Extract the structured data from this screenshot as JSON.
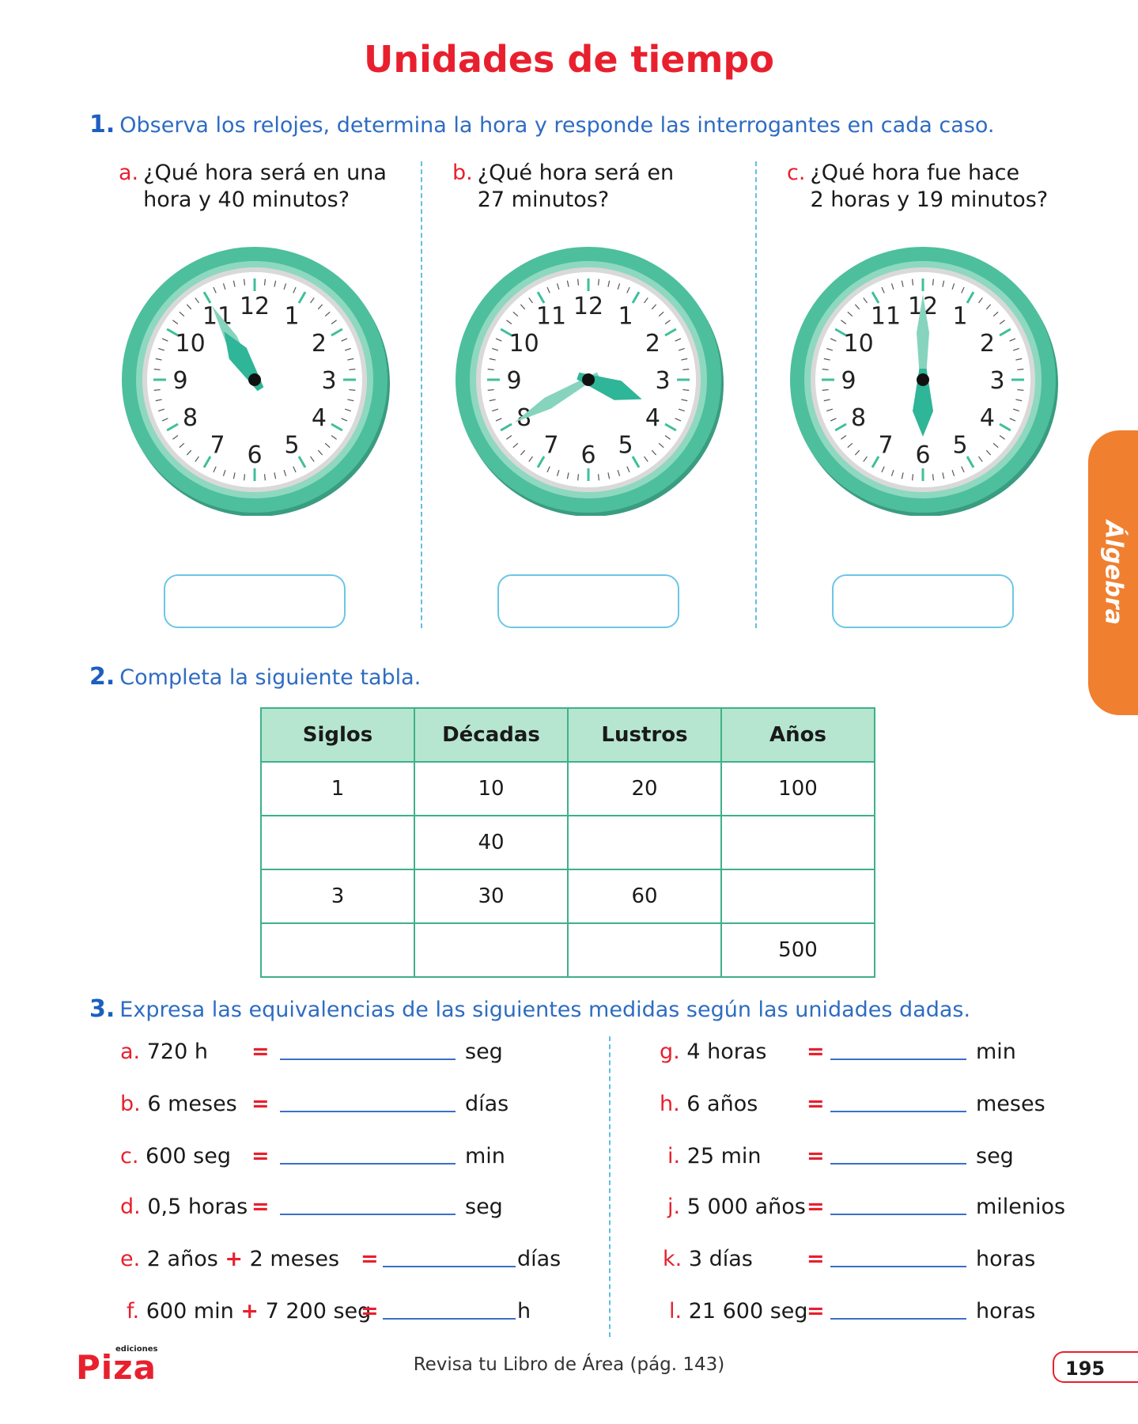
{
  "title": "Unidades de tiempo",
  "section1": {
    "number": "1.",
    "instruction": "Observa los relojes, determina la hora y responde las interrogantes en cada caso.",
    "questions": [
      {
        "letter": "a.",
        "line1": "¿Qué hora será en una",
        "line2": "hora y 40 minutos?",
        "clock_hour": 10,
        "clock_minute": 55
      },
      {
        "letter": "b.",
        "line1": "¿Qué hora será en",
        "line2": "27 minutos?",
        "clock_hour": 3,
        "clock_minute": 40
      },
      {
        "letter": "c.",
        "line1": "¿Qué hora fue hace",
        "line2": "2 horas y 19 minutos?",
        "clock_hour": 6,
        "clock_minute": 0
      }
    ],
    "clock_numerals": [
      "12",
      "1",
      "2",
      "3",
      "4",
      "5",
      "6",
      "7",
      "8",
      "9",
      "10",
      "11"
    ]
  },
  "section2": {
    "number": "2.",
    "instruction": "Completa la siguiente tabla.",
    "headers": [
      "Siglos",
      "Décadas",
      "Lustros",
      "Años"
    ],
    "rows": [
      [
        "1",
        "10",
        "20",
        "100"
      ],
      [
        "",
        "40",
        "",
        ""
      ],
      [
        "3",
        "30",
        "60",
        ""
      ],
      [
        "",
        "",
        "",
        "500"
      ]
    ]
  },
  "section3": {
    "number": "3.",
    "instruction": "Expresa las equivalencias de las siguientes medidas según las unidades dadas.",
    "left": [
      {
        "letter": "a.",
        "text": "720 h",
        "unit": "seg"
      },
      {
        "letter": "b.",
        "text": "6 meses",
        "unit": "días"
      },
      {
        "letter": "c.",
        "text": "600 seg",
        "unit": "min"
      },
      {
        "letter": "d.",
        "text": "0,5 horas",
        "unit": "seg"
      },
      {
        "letter": "e.",
        "text": "2 años",
        "plus": "+",
        "text2": "2 meses",
        "unit": "días"
      },
      {
        "letter": "f.",
        "text": "600 min",
        "plus": "+",
        "text2": "7 200 seg",
        "unit": "h"
      }
    ],
    "right": [
      {
        "letter": "g.",
        "text": "4 horas",
        "unit": "min"
      },
      {
        "letter": "h.",
        "text": "6 años",
        "unit": "meses"
      },
      {
        "letter": "i.",
        "text": "25 min",
        "unit": "seg"
      },
      {
        "letter": "j.",
        "text": "5 000 años",
        "unit": "milenios"
      },
      {
        "letter": "k.",
        "text": "3 días",
        "unit": "horas"
      },
      {
        "letter": "l.",
        "text": "21 600 seg",
        "unit": "horas"
      }
    ],
    "equals": "="
  },
  "side_tab": "Álgebra",
  "footer": "Revisa tu Libro de Área (pág. 143)",
  "page_number": "195",
  "logo": {
    "brand": "Piza",
    "tag": "ediciones"
  },
  "colors": {
    "title": "#e8202e",
    "instruction": "#2e6cc2",
    "clock_ring": "#4dbf9d",
    "tab": "#f07f2f"
  }
}
